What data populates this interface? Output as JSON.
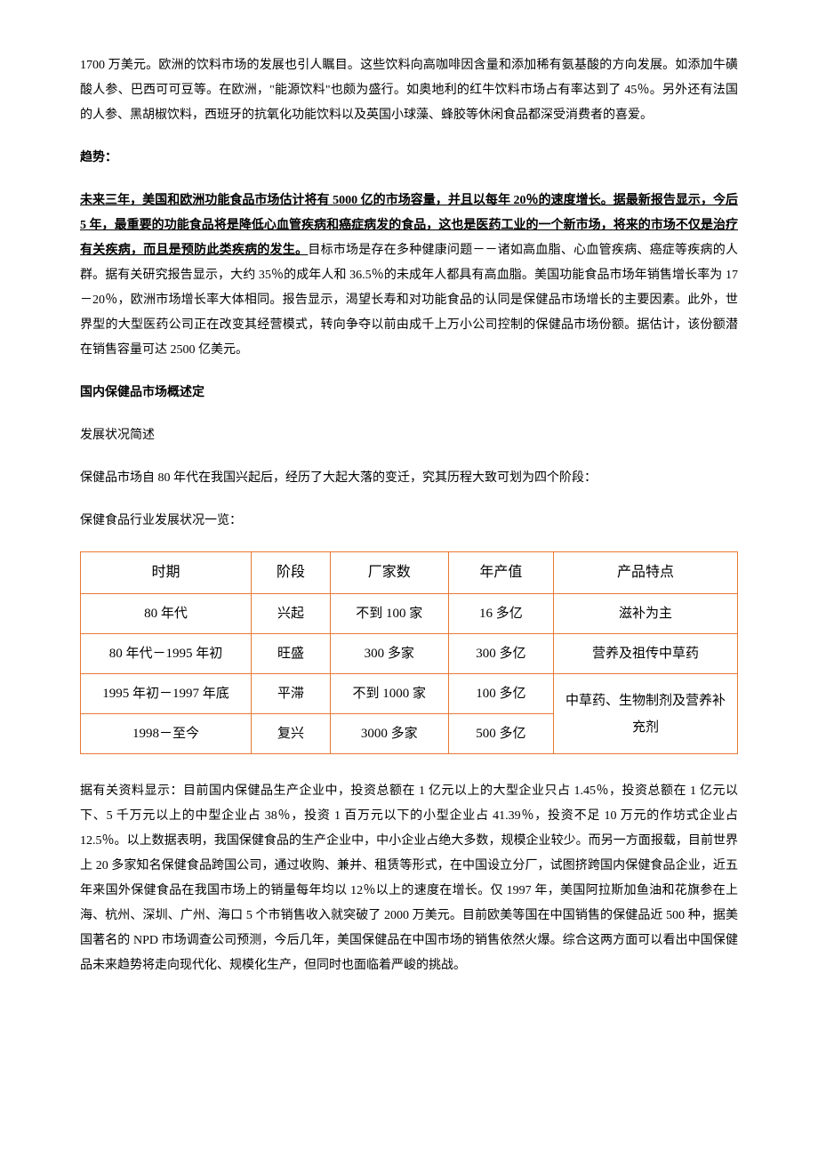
{
  "intro_paragraph": "1700 万美元。欧洲的饮料市场的发展也引人瞩目。这些饮料向高咖啡因含量和添加稀有氨基酸的方向发展。如添加牛磺酸人参、巴西可可豆等。在欧洲，\"能源饮料\"也颇为盛行。如奥地利的红牛饮料市场占有率达到了 45％。另外还有法国的人参、黑胡椒饮料，西班牙的抗氧化功能饮料以及英国小球藻、蜂胶等休闲食品都深受消费者的喜爱。",
  "trend_heading": "趋势：",
  "trend_underline": "未来三年，美国和欧洲功能食品市场估计将有 5000 亿的市场容量，并且以每年 20％的速度增长。据最新报告显示，今后 5 年，最重要的功能食品将是降低心血管疾病和癌症病发的食品，这也是医药工业的一个新市场，将来的市场不仅是治疗有关疾病，而且是预防此类疾病的发生。",
  "trend_rest": "目标市场是存在多种健康问题－－诸如高血脂、心血管疾病、癌症等疾病的人群。据有关研究报告显示，大约 35％的成年人和 36.5％的未成年人都具有高血脂。美国功能食品市场年销售增长率为 17－20％，欧洲市场增长率大体相同。报告显示，渴望长寿和对功能食品的认同是保健品市场增长的主要因素。此外，世界型的大型医药公司正在改变其经营模式，转向争夺以前由成千上万小公司控制的保健品市场份额。据估计，该份额潜在销售容量可达 2500 亿美元。",
  "domestic_heading": "国内保健品市场概述定",
  "dev_status_heading": "发展状况简述",
  "dev_intro": "保健品市场自 80 年代在我国兴起后，经历了大起大落的变迁，究其历程大致可划为四个阶段：",
  "table_intro": "保健食品行业发展状况一览：",
  "table": {
    "border_color": "#e87830",
    "headers": {
      "period": "时期",
      "stage": "阶段",
      "count": "厂家数",
      "value": "年产值",
      "feature": "产品特点"
    },
    "rows": [
      {
        "period": "80 年代",
        "stage": "兴起",
        "count": "不到 100 家",
        "value": "16 多亿",
        "feature": "滋补为主"
      },
      {
        "period": "80 年代－1995 年初",
        "stage": "旺盛",
        "count": "300 多家",
        "value": "300 多亿",
        "feature": "营养及祖传中草药"
      },
      {
        "period": "1995 年初－1997 年底",
        "stage": "平滞",
        "count": "不到 1000 家",
        "value": "100 多亿",
        "feature": "中草药、生物制剂及营养补充剂"
      },
      {
        "period": "1998－至今",
        "stage": "复兴",
        "count": "3000 多家",
        "value": "500 多亿",
        "feature": ""
      }
    ],
    "merged_feature_rowspan": 2
  },
  "after_table_paragraph": "据有关资料显示：目前国内保健品生产企业中，投资总额在 1 亿元以上的大型企业只占 1.45％，投资总额在 1 亿元以下、5 千万元以上的中型企业占 38％，投资 1 百万元以下的小型企业占 41.39％，投资不足 10 万元的作坊式企业占 12.5％。以上数据表明，我国保健食品的生产企业中，中小企业占绝大多数，规模企业较少。而另一方面报载，目前世界上 20 多家知名保健食品跨国公司，通过收购、兼并、租赁等形式，在中国设立分厂，试图挤跨国内保健食品企业，近五年来国外保健食品在我国市场上的销量每年均以 12％以上的速度在增长。仅 1997 年，美国阿拉斯加鱼油和花旗参在上海、杭州、深圳、广州、海口 5 个市销售收入就突破了 2000 万美元。目前欧美等国在中国销售的保健品近 500 种，据美国著名的 NPD 市场调查公司预测，今后几年，美国保健品在中国市场的销售依然火爆。综合这两方面可以看出中国保健品未来趋势将走向现代化、规模化生产，但同时也面临着严峻的挑战。"
}
